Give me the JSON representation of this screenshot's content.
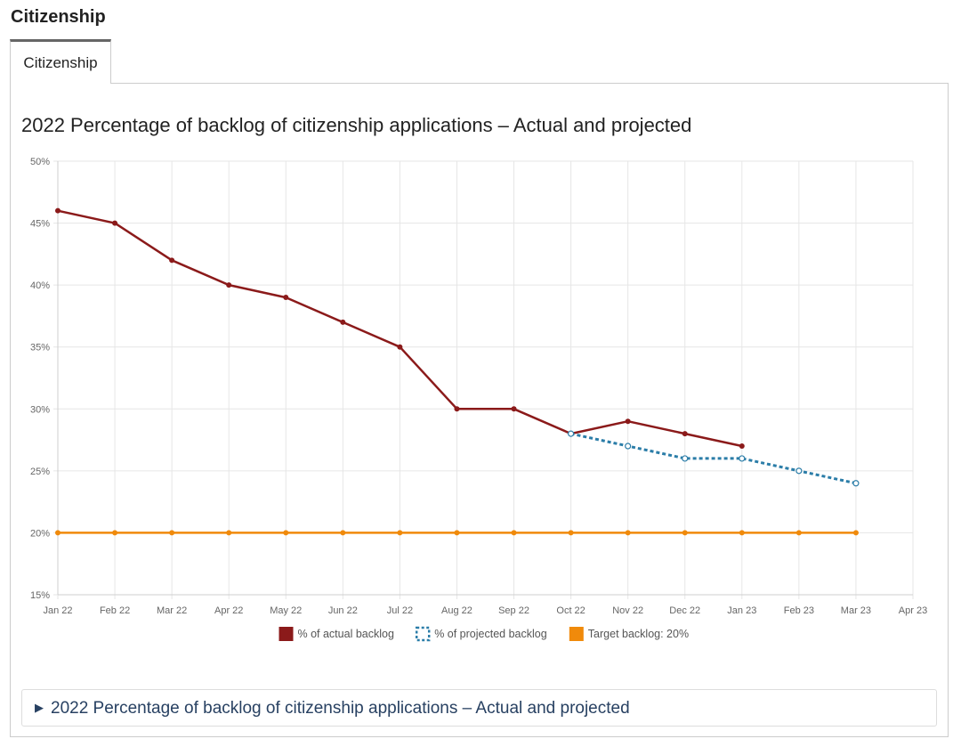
{
  "page": {
    "section_title": "Citizenship",
    "tab_label": "Citizenship",
    "details_label": "2022 Percentage of backlog of citizenship applications – Actual and projected"
  },
  "chart_data": {
    "type": "line",
    "title": "2022 Percentage of backlog of citizenship applications – Actual and projected",
    "xlabel": "",
    "ylabel": "",
    "categories": [
      "Jan 22",
      "Feb 22",
      "Mar 22",
      "Apr 22",
      "May 22",
      "Jun 22",
      "Jul 22",
      "Aug 22",
      "Sep 22",
      "Oct 22",
      "Nov 22",
      "Dec 22",
      "Jan 23",
      "Feb 23",
      "Mar 23",
      "Apr 23"
    ],
    "y_ticks": [
      "15%",
      "20%",
      "25%",
      "30%",
      "35%",
      "40%",
      "45%",
      "50%"
    ],
    "ylim": [
      15,
      50
    ],
    "grid": true,
    "legend_position": "bottom",
    "series": [
      {
        "name": "% of actual backlog",
        "color": "#8b1a1a",
        "style": "solid",
        "values": [
          46,
          45,
          42,
          40,
          39,
          37,
          35,
          30,
          30,
          28,
          29,
          28,
          27,
          null,
          null,
          null
        ]
      },
      {
        "name": "% of projected backlog",
        "color": "#2b7da8",
        "style": "dotted",
        "values": [
          null,
          null,
          null,
          null,
          null,
          null,
          null,
          null,
          null,
          28,
          27,
          26,
          26,
          25,
          24,
          null
        ]
      },
      {
        "name": "Target backlog: 20%",
        "color": "#f08a0b",
        "style": "solid",
        "values": [
          20,
          20,
          20,
          20,
          20,
          20,
          20,
          20,
          20,
          20,
          20,
          20,
          20,
          20,
          20,
          null
        ]
      }
    ]
  }
}
